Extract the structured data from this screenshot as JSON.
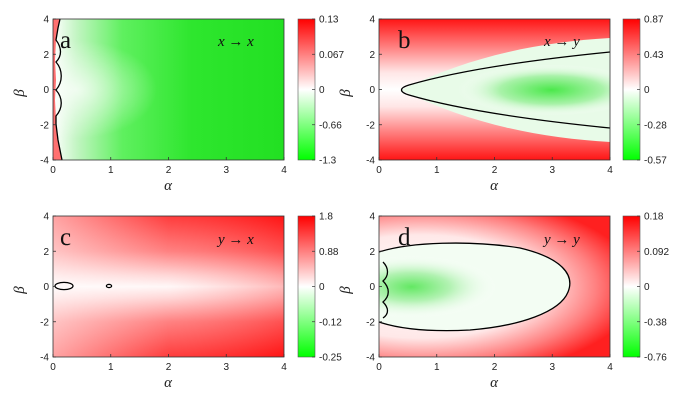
{
  "chart_data": [
    {
      "type": "heatmap",
      "panel_label": "a",
      "transition": "x → x",
      "xlabel": "α",
      "ylabel": "β",
      "xlim": [
        0,
        4
      ],
      "ylim": [
        -4,
        4
      ],
      "xticks": [
        "0",
        "1",
        "2",
        "3",
        "4"
      ],
      "yticks": [
        "4",
        "2",
        "0",
        "-2",
        "-4"
      ],
      "colorbar": {
        "ticks": [
          "0.13",
          "0.067",
          "0",
          "-0.66",
          "-1.3"
        ],
        "max": 0.13,
        "min": -1.3,
        "colors": [
          "#ff0000",
          "#ffffff",
          "#00ff00"
        ]
      },
      "contour_level": 0
    },
    {
      "type": "heatmap",
      "panel_label": "b",
      "transition": "x → y",
      "xlabel": "α",
      "ylabel": "β",
      "xlim": [
        0,
        4
      ],
      "ylim": [
        -4,
        4
      ],
      "xticks": [
        "0",
        "1",
        "2",
        "3",
        "4"
      ],
      "yticks": [
        "4",
        "2",
        "0",
        "-2",
        "-4"
      ],
      "colorbar": {
        "ticks": [
          "0.87",
          "0.43",
          "0",
          "-0.28",
          "-0.57"
        ],
        "max": 0.87,
        "min": -0.57,
        "colors": [
          "#ff0000",
          "#ffffff",
          "#00ff00"
        ]
      },
      "contour_level": 0
    },
    {
      "type": "heatmap",
      "panel_label": "c",
      "transition": "y → x",
      "xlabel": "α",
      "ylabel": "β",
      "xlim": [
        0,
        4
      ],
      "ylim": [
        -4,
        4
      ],
      "xticks": [
        "0",
        "1",
        "2",
        "3",
        "4"
      ],
      "yticks": [
        "4",
        "2",
        "0",
        "-2",
        "-4"
      ],
      "colorbar": {
        "ticks": [
          "1.8",
          "0.88",
          "0",
          "-0.12",
          "-0.25"
        ],
        "max": 1.8,
        "min": -0.25,
        "colors": [
          "#ff0000",
          "#ffffff",
          "#00ff00"
        ]
      },
      "contour_level": 0
    },
    {
      "type": "heatmap",
      "panel_label": "d",
      "transition": "y → y",
      "xlabel": "α",
      "ylabel": "β",
      "xlim": [
        0,
        4
      ],
      "ylim": [
        -4,
        4
      ],
      "xticks": [
        "0",
        "1",
        "2",
        "3",
        "4"
      ],
      "yticks": [
        "4",
        "2",
        "0",
        "-2",
        "-4"
      ],
      "colorbar": {
        "ticks": [
          "0.18",
          "0.092",
          "0",
          "-0.38",
          "-0.76"
        ],
        "max": 0.18,
        "min": -0.76,
        "colors": [
          "#ff0000",
          "#ffffff",
          "#00ff00"
        ]
      },
      "contour_level": 0
    }
  ]
}
